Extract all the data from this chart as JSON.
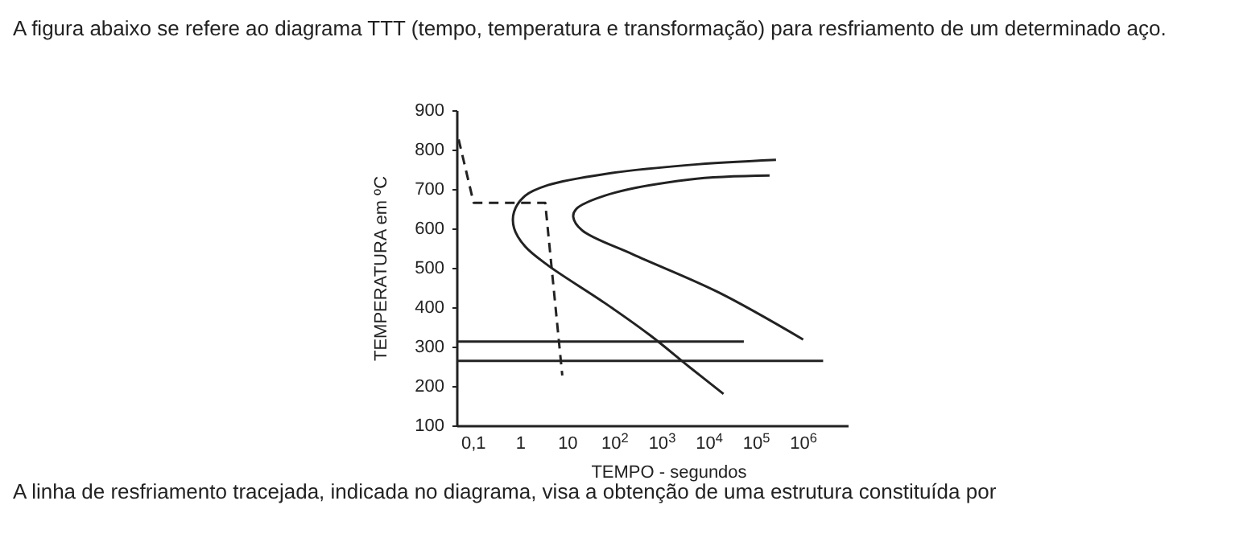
{
  "chart_data": {
    "type": "line",
    "title": "A figura abaixo se refere ao diagrama TTT (tempo, temperatura e transformação) para resfriamento de um determinado aço.",
    "xlabel": "TEMPO - segundos",
    "ylabel": "TEMPERATURA em ºC",
    "annotations": [
      "A linha de resfriamento tracejada, indicada no diagrama, visa a obtenção de uma estrutura constituída por"
    ],
    "log": "x",
    "xlim": [
      0.045,
      9000000
    ],
    "xticks": [
      {
        "value": 0.1,
        "label": "0,1"
      },
      1,
      10,
      {
        "value": 100,
        "label": "10$^{2}$"
      },
      {
        "value": 1000,
        "label": "10$^{3}$"
      },
      {
        "value": 10000,
        "label": "10$^{4}$"
      },
      {
        "value": 100000,
        "label": "10$^{5}$"
      },
      {
        "value": 1000000,
        "label": "10$^{6}$"
      }
    ],
    "ylim": [
      100,
      900
    ],
    "yticks": [
      100,
      200,
      300,
      400,
      500,
      600,
      700,
      800,
      900
    ],
    "grid": false,
    "marker": "none",
    "series": [
      {
        "color": "#222222",
        "line_style": "solid",
        "x": [
          260000,
          3800,
          60,
          3.8,
          1.24,
          0.72,
          0.72,
          1.24,
          3.8,
          60,
          550,
          3800,
          20000
        ],
        "values": [
          776,
          763,
          740,
          712,
          685,
          644,
          603,
          556,
          508,
          413,
          331,
          250,
          182
        ]
      },
      {
        "color": "#222222",
        "line_style": "solid",
        "x": [
          190000,
          3800,
          60,
          15,
          13,
          20,
          240,
          15500,
          980000
        ],
        "values": [
          736,
          726,
          685,
          651,
          631,
          597,
          536,
          440,
          320
        ]
      },
      {
        "color": "#222222",
        "line_style": "dashed",
        "x": [
          0.048,
          0.1,
          3.3,
          7.6
        ],
        "values": [
          828,
          667,
          667,
          229
        ]
      },
      {
        "color": "#222222",
        "line_style": "solid",
        "x": [
          0.045,
          54000
        ],
        "values": [
          315,
          315
        ]
      },
      {
        "color": "#222222",
        "line_style": "solid",
        "x": [
          0.045,
          2600000
        ],
        "values": [
          266,
          266
        ]
      }
    ]
  }
}
